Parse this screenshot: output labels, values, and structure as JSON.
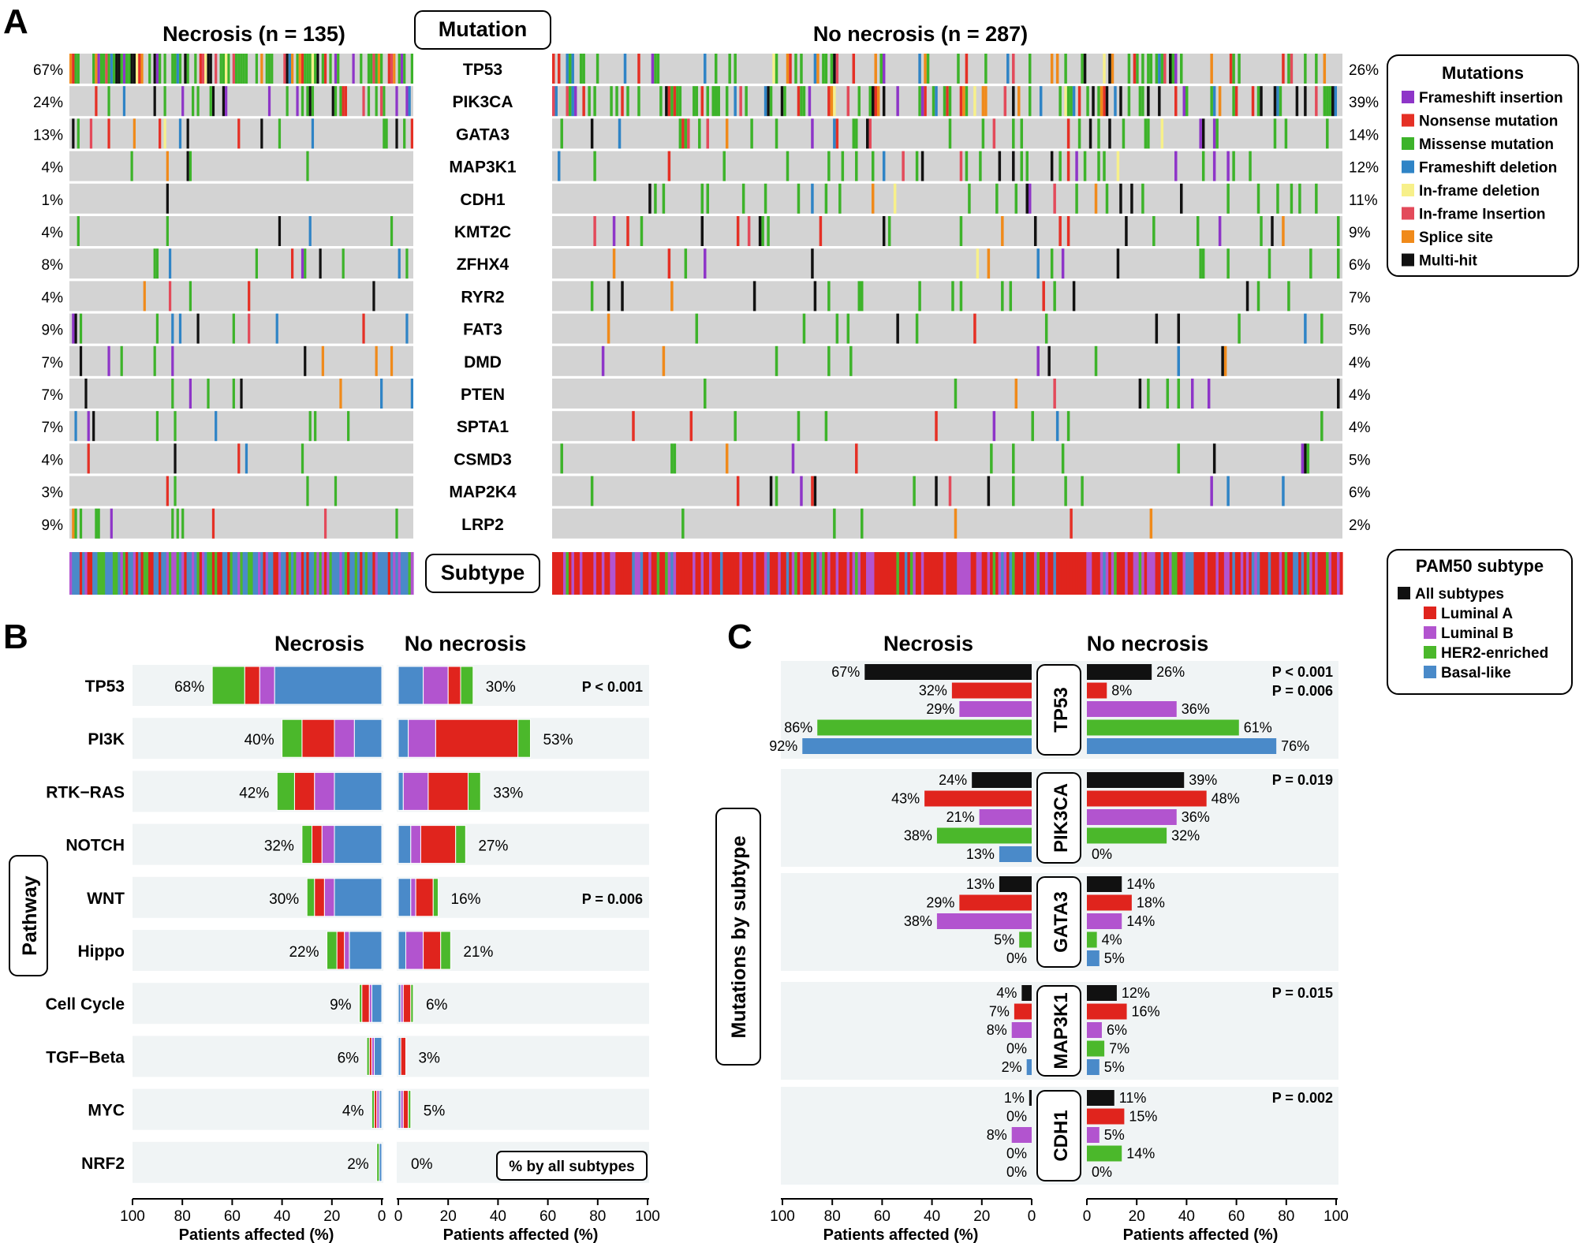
{
  "colors": {
    "frameshift_insertion": "#8e35c8",
    "nonsense": "#e53025",
    "missense": "#3db32a",
    "frameshift_deletion": "#2f84c6",
    "inframe_deletion": "#f7f08a",
    "inframe_insertion": "#e34a5a",
    "splice": "#f08a1a",
    "multihit": "#111111",
    "grey": "#d3d3d3",
    "luminal_a": "#e0241d",
    "luminal_b": "#b254cf",
    "her2": "#4bb82b",
    "basal": "#4a8ac9",
    "all": "#111111",
    "panel_bg": "#f0f4f5"
  },
  "panel_letters": [
    "A",
    "B",
    "C"
  ],
  "chart_data": [
    {
      "type": "oncoprint",
      "panel": "A",
      "left_title": "Necrosis (n = 135)",
      "right_title": "No necrosis (n = 287)",
      "center_label": "Mutation",
      "subtype_label": "Subtype",
      "genes": [
        "TP53",
        "PIK3CA",
        "GATA3",
        "MAP3K1",
        "CDH1",
        "KMT2C",
        "ZFHX4",
        "RYR2",
        "FAT3",
        "DMD",
        "PTEN",
        "SPTA1",
        "CSMD3",
        "MAP2K4",
        "LRP2"
      ],
      "necrosis_pct": [
        "67%",
        "24%",
        "13%",
        "4%",
        "1%",
        "4%",
        "8%",
        "4%",
        "9%",
        "7%",
        "7%",
        "7%",
        "4%",
        "3%",
        "9%"
      ],
      "no_necrosis_pct": [
        "26%",
        "39%",
        "14%",
        "12%",
        "11%",
        "9%",
        "6%",
        "7%",
        "5%",
        "4%",
        "4%",
        "4%",
        "5%",
        "6%",
        "2%"
      ],
      "mutation_legend_title": "Mutations",
      "mutation_legend": [
        {
          "label": "Frameshift insertion",
          "color": "#8e35c8"
        },
        {
          "label": "Nonsense mutation",
          "color": "#e53025"
        },
        {
          "label": "Missense mutation",
          "color": "#3db32a"
        },
        {
          "label": "Frameshift deletion",
          "color": "#2f84c6"
        },
        {
          "label": "In-frame deletion",
          "color": "#f7f08a"
        },
        {
          "label": "In-frame Insertion",
          "color": "#e34a5a"
        },
        {
          "label": "Splice site",
          "color": "#f08a1a"
        },
        {
          "label": "Multi-hit",
          "color": "#111111"
        }
      ],
      "subtype_legend_title": "PAM50 subtype",
      "subtype_legend": [
        {
          "label": "All subtypes",
          "color": "#111111"
        },
        {
          "label": "Luminal A",
          "color": "#e0241d"
        },
        {
          "label": "Luminal B",
          "color": "#b254cf"
        },
        {
          "label": "HER2-enriched",
          "color": "#4bb82b"
        },
        {
          "label": "Basal-like",
          "color": "#4a8ac9"
        }
      ]
    },
    {
      "type": "bar",
      "panel": "B",
      "orientation": "horizontal-stacked-mirrored",
      "left_title": "Necrosis",
      "right_title": "No necrosis",
      "ylabel": "Pathway",
      "xlabel": "Patients affected (%)",
      "xlim": [
        0,
        100
      ],
      "xticks": [
        "100",
        "80",
        "60",
        "40",
        "20",
        "0"
      ],
      "xticks_right": [
        "0",
        "20",
        "40",
        "60",
        "80",
        "100"
      ],
      "stack_order": [
        "HER2-enriched",
        "Luminal A",
        "Luminal B",
        "Basal-like"
      ],
      "note": "% by all subtypes",
      "categories": [
        "TP53",
        "PI3K",
        "RTK−RAS",
        "NOTCH",
        "WNT",
        "Hippo",
        "Cell Cycle",
        "TGF−Beta",
        "MYC",
        "NRF2"
      ],
      "necrosis_totals": [
        68,
        40,
        42,
        32,
        30,
        22,
        9,
        6,
        4,
        2
      ],
      "no_necrosis_totals": [
        30,
        53,
        33,
        27,
        16,
        21,
        6,
        3,
        5,
        0
      ],
      "necrosis_labels": [
        "68%",
        "40%",
        "42%",
        "32%",
        "30%",
        "22%",
        "9%",
        "6%",
        "4%",
        "2%"
      ],
      "no_necrosis_labels": [
        "30%",
        "53%",
        "33%",
        "27%",
        "16%",
        "21%",
        "6%",
        "3%",
        "5%",
        "0%"
      ],
      "pvalues": [
        "P < 0.001",
        "",
        "",
        "",
        "P = 0.006",
        "",
        "",
        "",
        "",
        ""
      ],
      "necrosis_segments": [
        [
          13,
          6,
          6,
          43
        ],
        [
          8,
          13,
          8,
          11
        ],
        [
          7,
          8,
          8,
          19
        ],
        [
          4,
          4,
          5,
          19
        ],
        [
          3,
          4,
          4,
          19
        ],
        [
          4,
          3,
          2,
          13
        ],
        [
          1,
          3,
          1,
          4
        ],
        [
          1,
          1,
          1,
          3
        ],
        [
          1,
          1,
          1,
          1
        ],
        [
          1,
          0,
          0,
          1
        ]
      ],
      "no_necrosis_segments": [
        [
          5,
          5,
          10,
          10
        ],
        [
          5,
          33,
          11,
          4
        ],
        [
          5,
          16,
          10,
          2
        ],
        [
          4,
          14,
          4,
          5
        ],
        [
          2,
          7,
          2,
          5
        ],
        [
          4,
          7,
          7,
          3
        ],
        [
          1,
          3,
          1,
          1
        ],
        [
          0,
          2,
          0,
          1
        ],
        [
          1,
          2,
          1,
          1
        ],
        [
          0,
          0,
          0,
          0
        ]
      ]
    },
    {
      "type": "bar",
      "panel": "C",
      "orientation": "horizontal-mirrored",
      "left_title": "Necrosis",
      "right_title": "No necrosis",
      "ylabel": "Mutations by subtype",
      "xlabel": "Patients affected (%)",
      "xlim": [
        0,
        100
      ],
      "xticks": [
        "100",
        "80",
        "60",
        "40",
        "20",
        "0"
      ],
      "xticks_right": [
        "0",
        "20",
        "40",
        "60",
        "80",
        "100"
      ],
      "series_names": [
        "All subtypes",
        "Luminal A",
        "Luminal B",
        "HER2-enriched",
        "Basal-like"
      ],
      "groups": [
        {
          "gene": "TP53",
          "pvalues": [
            "P < 0.001",
            "P = 0.006"
          ],
          "necrosis": [
            67,
            32,
            29,
            86,
            92
          ],
          "necrosis_labels": [
            "67%",
            "32%",
            "29%",
            "86%",
            "92%"
          ],
          "no_necrosis": [
            26,
            8,
            36,
            61,
            76
          ],
          "no_necrosis_labels": [
            "26%",
            "8%",
            "36%",
            "61%",
            "76%"
          ]
        },
        {
          "gene": "PIK3CA",
          "pvalues": [
            "P = 0.019"
          ],
          "necrosis": [
            24,
            43,
            21,
            38,
            13
          ],
          "necrosis_labels": [
            "24%",
            "43%",
            "21%",
            "38%",
            "13%"
          ],
          "no_necrosis": [
            39,
            48,
            36,
            32,
            0
          ],
          "no_necrosis_labels": [
            "39%",
            "48%",
            "36%",
            "32%",
            "0%"
          ]
        },
        {
          "gene": "GATA3",
          "pvalues": [],
          "necrosis": [
            13,
            29,
            38,
            5,
            0
          ],
          "necrosis_labels": [
            "13%",
            "29%",
            "38%",
            "5%",
            "0%"
          ],
          "no_necrosis": [
            14,
            18,
            14,
            4,
            5
          ],
          "no_necrosis_labels": [
            "14%",
            "18%",
            "14%",
            "4%",
            "5%"
          ]
        },
        {
          "gene": "MAP3K1",
          "pvalues": [
            "P = 0.015"
          ],
          "necrosis": [
            4,
            7,
            8,
            0,
            2
          ],
          "necrosis_labels": [
            "4%",
            "7%",
            "8%",
            "0%",
            "2%"
          ],
          "no_necrosis": [
            12,
            16,
            6,
            7,
            5
          ],
          "no_necrosis_labels": [
            "12%",
            "16%",
            "6%",
            "7%",
            "5%"
          ]
        },
        {
          "gene": "CDH1",
          "pvalues": [
            "P = 0.002"
          ],
          "necrosis": [
            1,
            0,
            8,
            0,
            0
          ],
          "necrosis_labels": [
            "1%",
            "0%",
            "8%",
            "0%",
            "0%"
          ],
          "no_necrosis": [
            11,
            15,
            5,
            14,
            0
          ],
          "no_necrosis_labels": [
            "11%",
            "15%",
            "5%",
            "14%",
            "0%"
          ]
        }
      ]
    }
  ]
}
